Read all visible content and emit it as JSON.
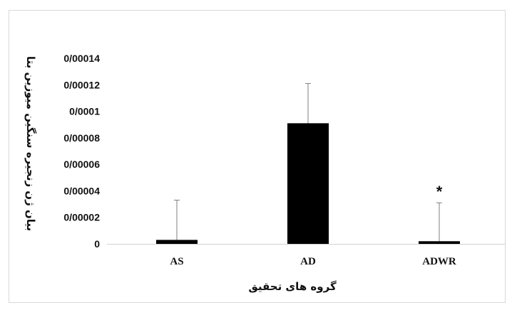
{
  "chart_data": {
    "type": "bar",
    "categories": [
      "AS",
      "AD",
      "ADWR"
    ],
    "values": [
      3e-06,
      9.1e-05,
      2e-06
    ],
    "errors": [
      3e-05,
      3e-05,
      2.9e-05
    ],
    "annotations": [
      "",
      "",
      "*"
    ],
    "title": "",
    "xlabel": "گروه های تحقیق",
    "ylabel": "بیان ژن زنجیره سنگین میوزین بتا",
    "ylim": [
      0,
      0.00014
    ],
    "y_ticks": [
      {
        "value": 0,
        "label": "0"
      },
      {
        "value": 2e-05,
        "label": "0/00002"
      },
      {
        "value": 4e-05,
        "label": "0/00004"
      },
      {
        "value": 6e-05,
        "label": "0/00006"
      },
      {
        "value": 8e-05,
        "label": "0/00008"
      },
      {
        "value": 0.0001,
        "label": "0/0001"
      },
      {
        "value": 0.00012,
        "label": "0/00012"
      },
      {
        "value": 0.00014,
        "label": "0/00014"
      }
    ],
    "grid": false,
    "legend": "none",
    "colors": {
      "bar": "#000000",
      "error_bar": "#7f7f7f",
      "axis": "#d0d0d0"
    }
  }
}
